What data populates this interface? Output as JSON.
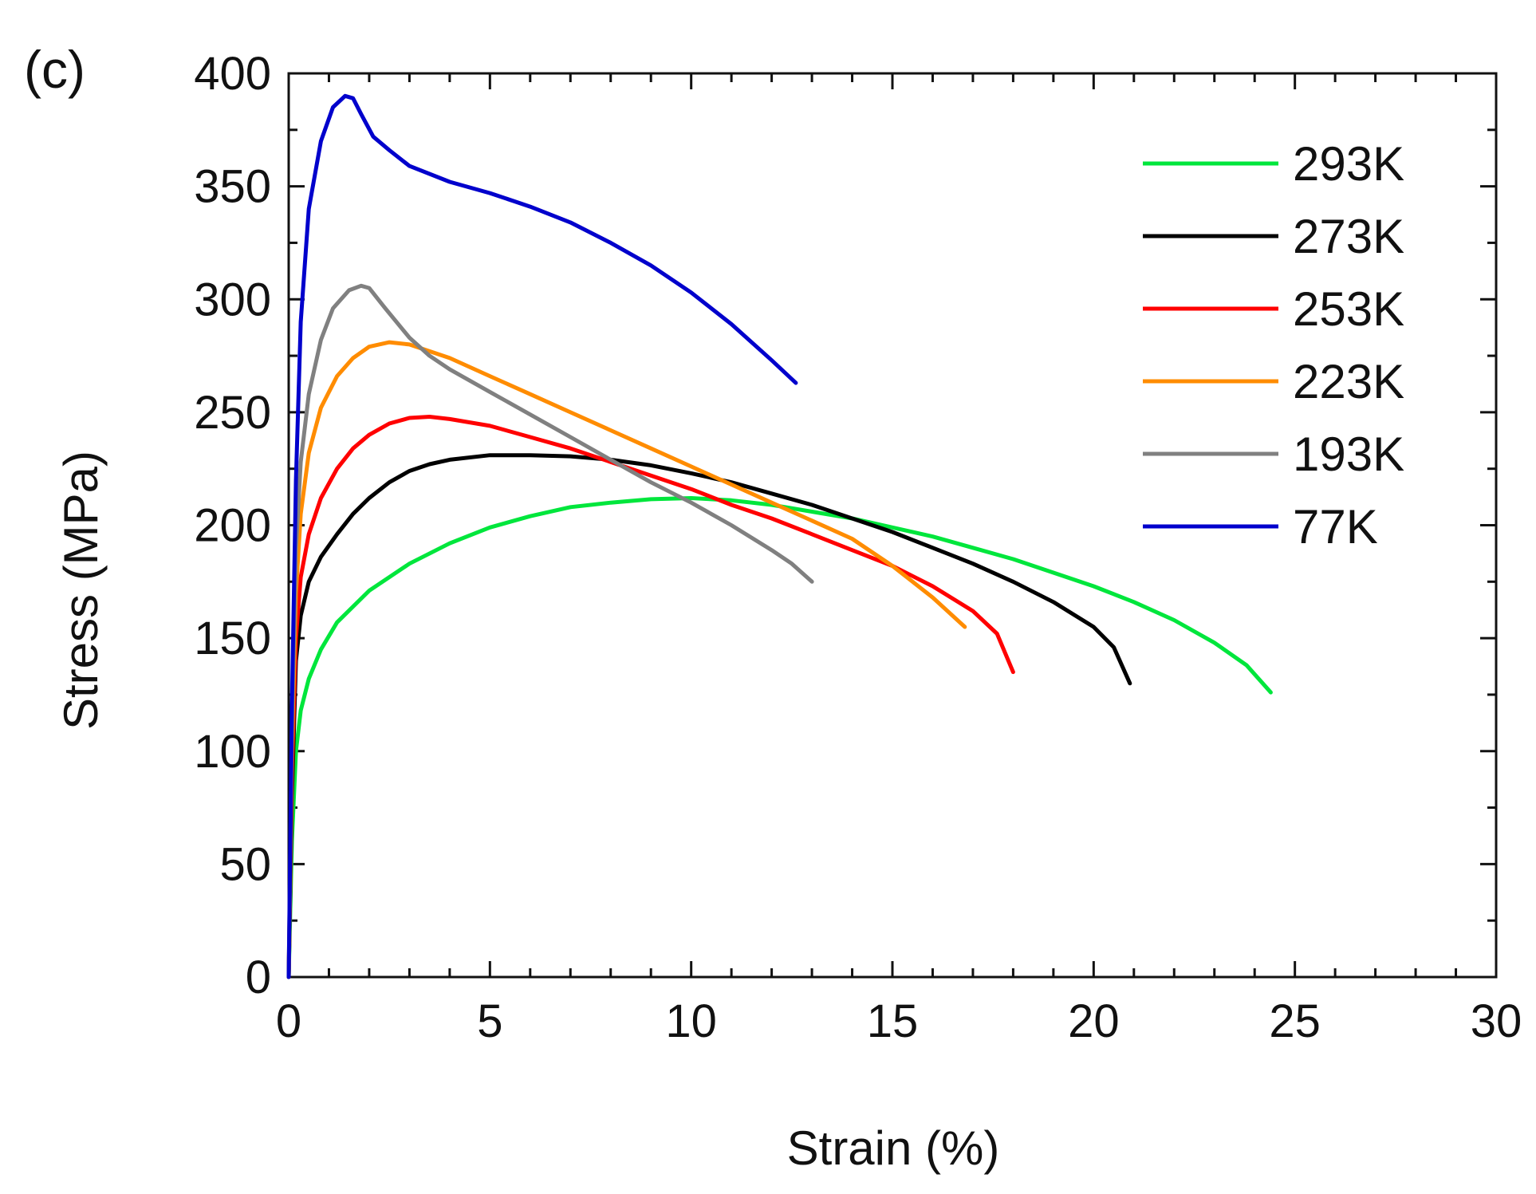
{
  "chart_data": {
    "type": "line",
    "panel_label": "(c)",
    "title": "",
    "xlabel": "Strain (%)",
    "ylabel": "Stress (MPa)",
    "xlim": [
      0,
      30
    ],
    "ylim": [
      0,
      400
    ],
    "xticks": [
      0,
      5,
      10,
      15,
      20,
      25,
      30
    ],
    "yticks": [
      0,
      50,
      100,
      150,
      200,
      250,
      300,
      350,
      400
    ],
    "x_minor_step": 1,
    "y_minor_step": 25,
    "grid": false,
    "legend_position": "top-right",
    "series": [
      {
        "name": "293K",
        "color": "#00e63c",
        "points": [
          [
            0,
            0
          ],
          [
            0.08,
            60
          ],
          [
            0.18,
            100
          ],
          [
            0.3,
            118
          ],
          [
            0.5,
            132
          ],
          [
            0.8,
            145
          ],
          [
            1.2,
            157
          ],
          [
            2,
            171
          ],
          [
            3,
            183
          ],
          [
            4,
            192
          ],
          [
            5,
            199
          ],
          [
            6,
            204
          ],
          [
            7,
            208
          ],
          [
            8,
            210
          ],
          [
            9,
            211.5
          ],
          [
            10,
            212
          ],
          [
            11,
            211
          ],
          [
            12,
            209
          ],
          [
            13,
            206
          ],
          [
            14,
            203
          ],
          [
            15,
            199
          ],
          [
            16,
            195
          ],
          [
            17,
            190
          ],
          [
            18,
            185
          ],
          [
            19,
            179
          ],
          [
            20,
            173
          ],
          [
            21,
            166
          ],
          [
            22,
            158
          ],
          [
            23,
            148
          ],
          [
            23.8,
            138
          ],
          [
            24.4,
            126
          ]
        ]
      },
      {
        "name": "273K",
        "color": "#000000",
        "points": [
          [
            0,
            0
          ],
          [
            0.08,
            80
          ],
          [
            0.18,
            140
          ],
          [
            0.3,
            160
          ],
          [
            0.5,
            175
          ],
          [
            0.8,
            186
          ],
          [
            1.2,
            196
          ],
          [
            1.6,
            205
          ],
          [
            2,
            212
          ],
          [
            2.5,
            219
          ],
          [
            3,
            224
          ],
          [
            3.5,
            227
          ],
          [
            4,
            229
          ],
          [
            5,
            231
          ],
          [
            6,
            231
          ],
          [
            7,
            230.5
          ],
          [
            8,
            229
          ],
          [
            9,
            226.5
          ],
          [
            10,
            223
          ],
          [
            11,
            219
          ],
          [
            12,
            214
          ],
          [
            13,
            209
          ],
          [
            14,
            203
          ],
          [
            15,
            197
          ],
          [
            16,
            190
          ],
          [
            17,
            183
          ],
          [
            18,
            175
          ],
          [
            19,
            166
          ],
          [
            20,
            155
          ],
          [
            20.5,
            146
          ],
          [
            20.9,
            130
          ]
        ]
      },
      {
        "name": "253K",
        "color": "#ff0000",
        "points": [
          [
            0,
            0
          ],
          [
            0.08,
            90
          ],
          [
            0.18,
            150
          ],
          [
            0.3,
            177
          ],
          [
            0.5,
            196
          ],
          [
            0.8,
            212
          ],
          [
            1.2,
            225
          ],
          [
            1.6,
            234
          ],
          [
            2,
            240
          ],
          [
            2.5,
            245
          ],
          [
            3,
            247.5
          ],
          [
            3.5,
            248
          ],
          [
            4,
            247
          ],
          [
            5,
            244
          ],
          [
            6,
            239
          ],
          [
            7,
            234
          ],
          [
            8,
            228
          ],
          [
            9,
            222
          ],
          [
            10,
            216
          ],
          [
            11,
            209
          ],
          [
            12,
            203
          ],
          [
            13,
            196
          ],
          [
            14,
            189
          ],
          [
            15,
            182
          ],
          [
            16,
            173
          ],
          [
            17,
            162
          ],
          [
            17.6,
            152
          ],
          [
            18,
            135
          ]
        ]
      },
      {
        "name": "223K",
        "color": "#ff8c00",
        "points": [
          [
            0,
            0
          ],
          [
            0.08,
            100
          ],
          [
            0.18,
            170
          ],
          [
            0.3,
            205
          ],
          [
            0.5,
            232
          ],
          [
            0.8,
            252
          ],
          [
            1.2,
            266
          ],
          [
            1.6,
            274
          ],
          [
            2,
            279
          ],
          [
            2.5,
            281
          ],
          [
            3,
            280
          ],
          [
            4,
            274
          ],
          [
            5,
            266
          ],
          [
            6,
            258
          ],
          [
            7,
            250
          ],
          [
            8,
            242
          ],
          [
            9,
            234
          ],
          [
            10,
            226
          ],
          [
            11,
            218
          ],
          [
            12,
            210
          ],
          [
            13,
            202
          ],
          [
            14,
            194
          ],
          [
            15,
            182
          ],
          [
            16,
            168
          ],
          [
            16.8,
            155
          ]
        ]
      },
      {
        "name": "193K",
        "color": "#808080",
        "points": [
          [
            0,
            0
          ],
          [
            0.08,
            110
          ],
          [
            0.18,
            190
          ],
          [
            0.3,
            228
          ],
          [
            0.5,
            258
          ],
          [
            0.8,
            282
          ],
          [
            1.1,
            296
          ],
          [
            1.5,
            304
          ],
          [
            1.8,
            306
          ],
          [
            2,
            305
          ],
          [
            2.4,
            296
          ],
          [
            3,
            283
          ],
          [
            3.5,
            275
          ],
          [
            4,
            269
          ],
          [
            5,
            259
          ],
          [
            6,
            249
          ],
          [
            7,
            239
          ],
          [
            8,
            229
          ],
          [
            9,
            219
          ],
          [
            10,
            210
          ],
          [
            11,
            200
          ],
          [
            12,
            189
          ],
          [
            12.5,
            183
          ],
          [
            13,
            175
          ]
        ]
      },
      {
        "name": "77K",
        "color": "#0000cc",
        "points": [
          [
            0,
            0
          ],
          [
            0.08,
            120
          ],
          [
            0.18,
            220
          ],
          [
            0.3,
            290
          ],
          [
            0.5,
            340
          ],
          [
            0.8,
            370
          ],
          [
            1.1,
            385
          ],
          [
            1.4,
            390
          ],
          [
            1.6,
            389
          ],
          [
            1.8,
            382
          ],
          [
            2.1,
            372
          ],
          [
            2.5,
            366
          ],
          [
            3,
            359
          ],
          [
            4,
            352
          ],
          [
            5,
            347
          ],
          [
            6,
            341
          ],
          [
            7,
            334
          ],
          [
            8,
            325
          ],
          [
            9,
            315
          ],
          [
            10,
            303
          ],
          [
            11,
            289
          ],
          [
            12,
            273
          ],
          [
            12.6,
            263
          ]
        ]
      }
    ]
  }
}
